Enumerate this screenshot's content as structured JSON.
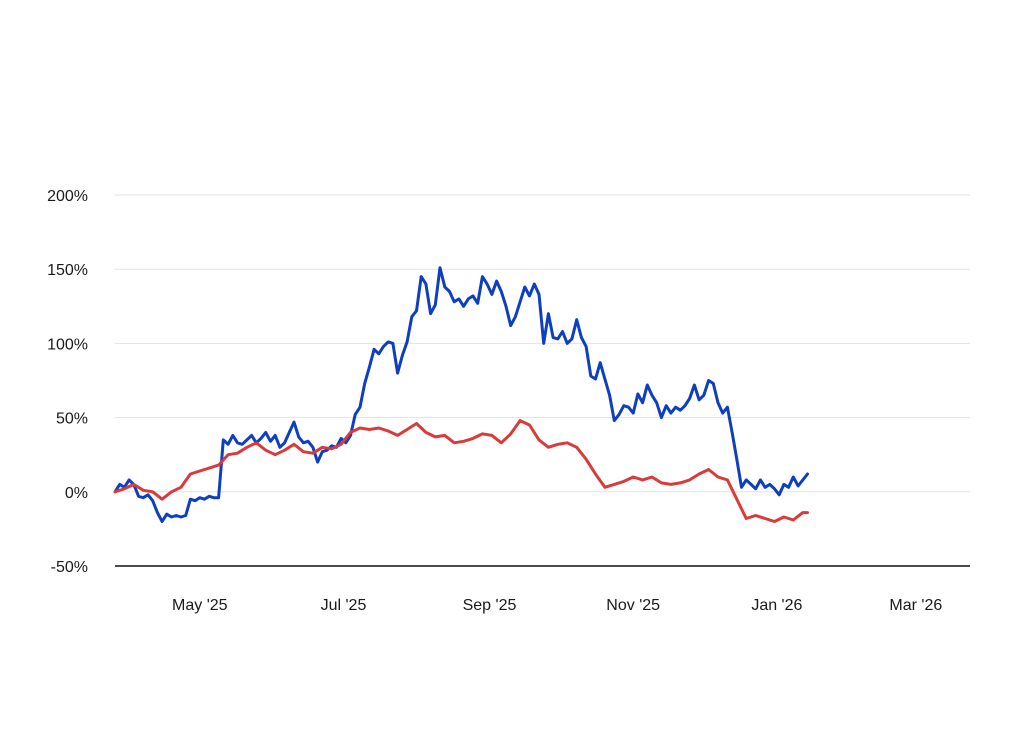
{
  "chart_data": {
    "type": "line",
    "title": "",
    "xlabel": "",
    "ylabel": "",
    "y_unit": "%",
    "ylim": [
      -50,
      200
    ],
    "xlim": [
      "2025-03-26",
      "2026-03-24"
    ],
    "grid": true,
    "legend": "none",
    "y_ticks": [
      {
        "value": 200,
        "label": "200%"
      },
      {
        "value": 150,
        "label": "150%"
      },
      {
        "value": 100,
        "label": "100%"
      },
      {
        "value": 50,
        "label": "50%"
      },
      {
        "value": 0,
        "label": "0%"
      },
      {
        "value": -50,
        "label": "-50%"
      }
    ],
    "x_ticks": [
      {
        "date": "2025-05-01",
        "label": "May '25"
      },
      {
        "date": "2025-07-01",
        "label": "Jul '25"
      },
      {
        "date": "2025-09-01",
        "label": "Sep '25"
      },
      {
        "date": "2025-11-01",
        "label": "Nov '25"
      },
      {
        "date": "2026-01-01",
        "label": "Jan '26"
      },
      {
        "date": "2026-03-01",
        "label": "Mar '26"
      }
    ],
    "series": [
      {
        "color": "#0d3fbf",
        "points": [
          [
            "2025-03-26",
            0
          ],
          [
            "2025-03-28",
            5
          ],
          [
            "2025-03-30",
            3
          ],
          [
            "2025-04-01",
            8
          ],
          [
            "2025-04-03",
            5
          ],
          [
            "2025-04-05",
            -3
          ],
          [
            "2025-04-07",
            -4
          ],
          [
            "2025-04-09",
            -2
          ],
          [
            "2025-04-11",
            -6
          ],
          [
            "2025-04-13",
            -14
          ],
          [
            "2025-04-15",
            -20
          ],
          [
            "2025-04-17",
            -15
          ],
          [
            "2025-04-19",
            -17
          ],
          [
            "2025-04-21",
            -16
          ],
          [
            "2025-04-23",
            -17
          ],
          [
            "2025-04-25",
            -16
          ],
          [
            "2025-04-27",
            -5
          ],
          [
            "2025-04-29",
            -6
          ],
          [
            "2025-05-01",
            -4
          ],
          [
            "2025-05-03",
            -5
          ],
          [
            "2025-05-05",
            -3
          ],
          [
            "2025-05-07",
            -4
          ],
          [
            "2025-05-09",
            -4
          ],
          [
            "2025-05-11",
            35
          ],
          [
            "2025-05-13",
            32
          ],
          [
            "2025-05-15",
            38
          ],
          [
            "2025-05-17",
            33
          ],
          [
            "2025-05-19",
            32
          ],
          [
            "2025-05-21",
            35
          ],
          [
            "2025-05-23",
            38
          ],
          [
            "2025-05-25",
            33
          ],
          [
            "2025-05-27",
            36
          ],
          [
            "2025-05-29",
            40
          ],
          [
            "2025-05-31",
            34
          ],
          [
            "2025-06-02",
            38
          ],
          [
            "2025-06-04",
            30
          ],
          [
            "2025-06-06",
            33
          ],
          [
            "2025-06-08",
            40
          ],
          [
            "2025-06-10",
            47
          ],
          [
            "2025-06-12",
            37
          ],
          [
            "2025-06-14",
            33
          ],
          [
            "2025-06-16",
            34
          ],
          [
            "2025-06-18",
            30
          ],
          [
            "2025-06-20",
            20
          ],
          [
            "2025-06-22",
            27
          ],
          [
            "2025-06-24",
            28
          ],
          [
            "2025-06-26",
            31
          ],
          [
            "2025-06-28",
            30
          ],
          [
            "2025-06-30",
            36
          ],
          [
            "2025-07-02",
            33
          ],
          [
            "2025-07-04",
            38
          ],
          [
            "2025-07-06",
            52
          ],
          [
            "2025-07-08",
            57
          ],
          [
            "2025-07-10",
            73
          ],
          [
            "2025-07-12",
            84
          ],
          [
            "2025-07-14",
            96
          ],
          [
            "2025-07-16",
            93
          ],
          [
            "2025-07-18",
            98
          ],
          [
            "2025-07-20",
            101
          ],
          [
            "2025-07-22",
            100
          ],
          [
            "2025-07-24",
            80
          ],
          [
            "2025-07-26",
            92
          ],
          [
            "2025-07-28",
            101
          ],
          [
            "2025-07-30",
            118
          ],
          [
            "2025-08-01",
            122
          ],
          [
            "2025-08-03",
            145
          ],
          [
            "2025-08-05",
            140
          ],
          [
            "2025-08-07",
            120
          ],
          [
            "2025-08-09",
            126
          ],
          [
            "2025-08-11",
            151
          ],
          [
            "2025-08-13",
            138
          ],
          [
            "2025-08-15",
            135
          ],
          [
            "2025-08-17",
            128
          ],
          [
            "2025-08-19",
            130
          ],
          [
            "2025-08-21",
            125
          ],
          [
            "2025-08-23",
            130
          ],
          [
            "2025-08-25",
            132
          ],
          [
            "2025-08-27",
            127
          ],
          [
            "2025-08-29",
            145
          ],
          [
            "2025-08-31",
            140
          ],
          [
            "2025-09-02",
            133
          ],
          [
            "2025-09-04",
            142
          ],
          [
            "2025-09-06",
            135
          ],
          [
            "2025-09-08",
            125
          ],
          [
            "2025-09-10",
            112
          ],
          [
            "2025-09-12",
            118
          ],
          [
            "2025-09-14",
            128
          ],
          [
            "2025-09-16",
            138
          ],
          [
            "2025-09-18",
            132
          ],
          [
            "2025-09-20",
            140
          ],
          [
            "2025-09-22",
            133
          ],
          [
            "2025-09-24",
            100
          ],
          [
            "2025-09-26",
            120
          ],
          [
            "2025-09-28",
            104
          ],
          [
            "2025-09-30",
            103
          ],
          [
            "2025-10-02",
            108
          ],
          [
            "2025-10-04",
            100
          ],
          [
            "2025-10-06",
            103
          ],
          [
            "2025-10-08",
            116
          ],
          [
            "2025-10-10",
            104
          ],
          [
            "2025-10-12",
            98
          ],
          [
            "2025-10-14",
            78
          ],
          [
            "2025-10-16",
            76
          ],
          [
            "2025-10-18",
            87
          ],
          [
            "2025-10-20",
            76
          ],
          [
            "2025-10-22",
            65
          ],
          [
            "2025-10-24",
            48
          ],
          [
            "2025-10-26",
            52
          ],
          [
            "2025-10-28",
            58
          ],
          [
            "2025-10-30",
            57
          ],
          [
            "2025-11-01",
            53
          ],
          [
            "2025-11-03",
            66
          ],
          [
            "2025-11-05",
            60
          ],
          [
            "2025-11-07",
            72
          ],
          [
            "2025-11-09",
            65
          ],
          [
            "2025-11-11",
            60
          ],
          [
            "2025-11-13",
            50
          ],
          [
            "2025-11-15",
            58
          ],
          [
            "2025-11-17",
            53
          ],
          [
            "2025-11-19",
            57
          ],
          [
            "2025-11-21",
            55
          ],
          [
            "2025-11-23",
            58
          ],
          [
            "2025-11-25",
            63
          ],
          [
            "2025-11-27",
            72
          ],
          [
            "2025-11-29",
            62
          ],
          [
            "2025-12-01",
            65
          ],
          [
            "2025-12-03",
            75
          ],
          [
            "2025-12-05",
            73
          ],
          [
            "2025-12-07",
            60
          ],
          [
            "2025-12-09",
            53
          ],
          [
            "2025-12-11",
            57
          ],
          [
            "2025-12-13",
            40
          ],
          [
            "2025-12-15",
            22
          ],
          [
            "2025-12-17",
            3
          ],
          [
            "2025-12-19",
            8
          ],
          [
            "2025-12-21",
            5
          ],
          [
            "2025-12-23",
            2
          ],
          [
            "2025-12-25",
            8
          ],
          [
            "2025-12-27",
            3
          ],
          [
            "2025-12-29",
            5
          ],
          [
            "2025-12-31",
            2
          ],
          [
            "2026-01-02",
            -2
          ],
          [
            "2026-01-04",
            5
          ],
          [
            "2026-01-06",
            3
          ],
          [
            "2026-01-08",
            10
          ],
          [
            "2026-01-10",
            4
          ],
          [
            "2026-01-12",
            8
          ],
          [
            "2026-01-14",
            12
          ]
        ]
      },
      {
        "color": "#d93a3a",
        "points": [
          [
            "2025-03-26",
            0
          ],
          [
            "2025-03-30",
            2
          ],
          [
            "2025-04-03",
            5
          ],
          [
            "2025-04-07",
            1
          ],
          [
            "2025-04-11",
            0
          ],
          [
            "2025-04-15",
            -5
          ],
          [
            "2025-04-19",
            0
          ],
          [
            "2025-04-23",
            3
          ],
          [
            "2025-04-27",
            12
          ],
          [
            "2025-05-01",
            14
          ],
          [
            "2025-05-05",
            16
          ],
          [
            "2025-05-09",
            18
          ],
          [
            "2025-05-13",
            25
          ],
          [
            "2025-05-17",
            26
          ],
          [
            "2025-05-21",
            30
          ],
          [
            "2025-05-25",
            33
          ],
          [
            "2025-05-29",
            28
          ],
          [
            "2025-06-02",
            25
          ],
          [
            "2025-06-06",
            28
          ],
          [
            "2025-06-10",
            32
          ],
          [
            "2025-06-14",
            27
          ],
          [
            "2025-06-18",
            26
          ],
          [
            "2025-06-22",
            30
          ],
          [
            "2025-06-26",
            29
          ],
          [
            "2025-06-30",
            32
          ],
          [
            "2025-07-04",
            40
          ],
          [
            "2025-07-08",
            43
          ],
          [
            "2025-07-12",
            42
          ],
          [
            "2025-07-16",
            43
          ],
          [
            "2025-07-20",
            41
          ],
          [
            "2025-07-24",
            38
          ],
          [
            "2025-07-28",
            42
          ],
          [
            "2025-08-01",
            46
          ],
          [
            "2025-08-05",
            40
          ],
          [
            "2025-08-09",
            37
          ],
          [
            "2025-08-13",
            38
          ],
          [
            "2025-08-17",
            33
          ],
          [
            "2025-08-21",
            34
          ],
          [
            "2025-08-25",
            36
          ],
          [
            "2025-08-29",
            39
          ],
          [
            "2025-09-02",
            38
          ],
          [
            "2025-09-06",
            33
          ],
          [
            "2025-09-10",
            39
          ],
          [
            "2025-09-14",
            48
          ],
          [
            "2025-09-18",
            45
          ],
          [
            "2025-09-22",
            35
          ],
          [
            "2025-09-26",
            30
          ],
          [
            "2025-09-30",
            32
          ],
          [
            "2025-10-04",
            33
          ],
          [
            "2025-10-08",
            30
          ],
          [
            "2025-10-12",
            22
          ],
          [
            "2025-10-16",
            12
          ],
          [
            "2025-10-20",
            3
          ],
          [
            "2025-10-24",
            5
          ],
          [
            "2025-10-28",
            7
          ],
          [
            "2025-11-01",
            10
          ],
          [
            "2025-11-05",
            8
          ],
          [
            "2025-11-09",
            10
          ],
          [
            "2025-11-13",
            6
          ],
          [
            "2025-11-17",
            5
          ],
          [
            "2025-11-21",
            6
          ],
          [
            "2025-11-25",
            8
          ],
          [
            "2025-11-29",
            12
          ],
          [
            "2025-12-03",
            15
          ],
          [
            "2025-12-07",
            10
          ],
          [
            "2025-12-11",
            8
          ],
          [
            "2025-12-15",
            -5
          ],
          [
            "2025-12-19",
            -18
          ],
          [
            "2025-12-23",
            -16
          ],
          [
            "2025-12-27",
            -18
          ],
          [
            "2025-12-31",
            -20
          ],
          [
            "2026-01-04",
            -17
          ],
          [
            "2026-01-08",
            -19
          ],
          [
            "2026-01-12",
            -14
          ],
          [
            "2026-01-14",
            -14
          ]
        ]
      }
    ]
  }
}
